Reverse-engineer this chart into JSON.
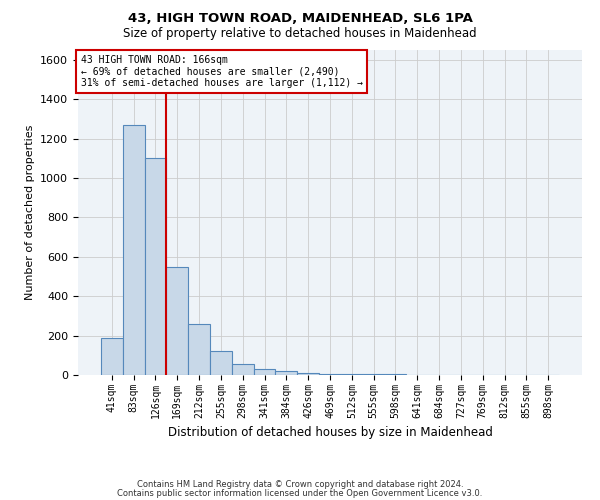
{
  "title1": "43, HIGH TOWN ROAD, MAIDENHEAD, SL6 1PA",
  "title2": "Size of property relative to detached houses in Maidenhead",
  "xlabel": "Distribution of detached houses by size in Maidenhead",
  "ylabel": "Number of detached properties",
  "footer1": "Contains HM Land Registry data © Crown copyright and database right 2024.",
  "footer2": "Contains public sector information licensed under the Open Government Licence v3.0.",
  "bin_labels": [
    "41sqm",
    "83sqm",
    "126sqm",
    "169sqm",
    "212sqm",
    "255sqm",
    "298sqm",
    "341sqm",
    "384sqm",
    "426sqm",
    "469sqm",
    "512sqm",
    "555sqm",
    "598sqm",
    "641sqm",
    "684sqm",
    "727sqm",
    "769sqm",
    "812sqm",
    "855sqm",
    "898sqm"
  ],
  "bar_values": [
    190,
    1270,
    1100,
    550,
    260,
    120,
    55,
    30,
    20,
    8,
    5,
    5,
    3,
    3,
    2,
    2,
    1,
    1,
    1,
    1,
    0
  ],
  "bar_color": "#c8d8e8",
  "bar_edge_color": "#5588bb",
  "property_line_color": "#cc0000",
  "annotation_line1": "43 HIGH TOWN ROAD: 166sqm",
  "annotation_line2": "← 69% of detached houses are smaller (2,490)",
  "annotation_line3": "31% of semi-detached houses are larger (1,112) →",
  "annotation_box_color": "#cc0000",
  "ylim": [
    0,
    1650
  ],
  "yticks": [
    0,
    200,
    400,
    600,
    800,
    1000,
    1200,
    1400,
    1600
  ],
  "grid_color": "#cccccc",
  "background_color": "#eef3f8"
}
